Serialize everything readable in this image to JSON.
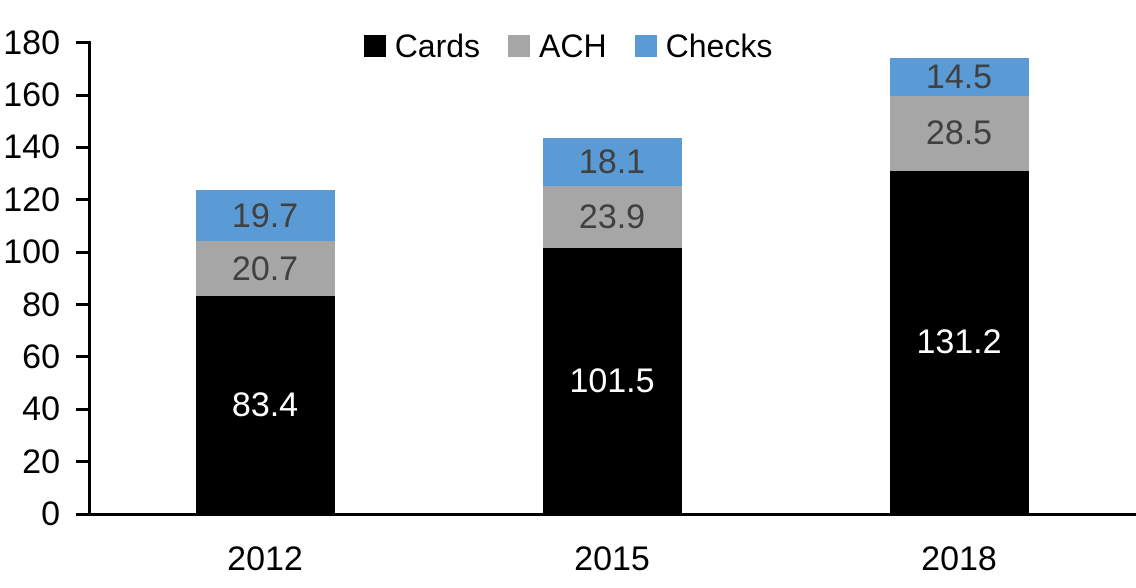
{
  "chart_data": {
    "type": "bar",
    "stacked": true,
    "title": "",
    "xlabel": "",
    "ylabel": "",
    "categories": [
      "2012",
      "2015",
      "2018"
    ],
    "series": [
      {
        "name": "Cards",
        "color": "#000000",
        "label_color": "#ffffff",
        "values": [
          83.4,
          101.5,
          131.2
        ]
      },
      {
        "name": "ACH",
        "color": "#a6a6a6",
        "label_color": "#404040",
        "values": [
          20.7,
          23.9,
          28.5
        ]
      },
      {
        "name": "Checks",
        "color": "#5b9bd5",
        "label_color": "#404040",
        "values": [
          19.7,
          18.1,
          14.5
        ]
      }
    ],
    "ylim": [
      0,
      180
    ],
    "yticks": [
      0,
      20,
      40,
      60,
      80,
      100,
      120,
      140,
      160,
      180
    ],
    "grid": false,
    "legend_position": "top-center",
    "axis_color": "#000000"
  }
}
